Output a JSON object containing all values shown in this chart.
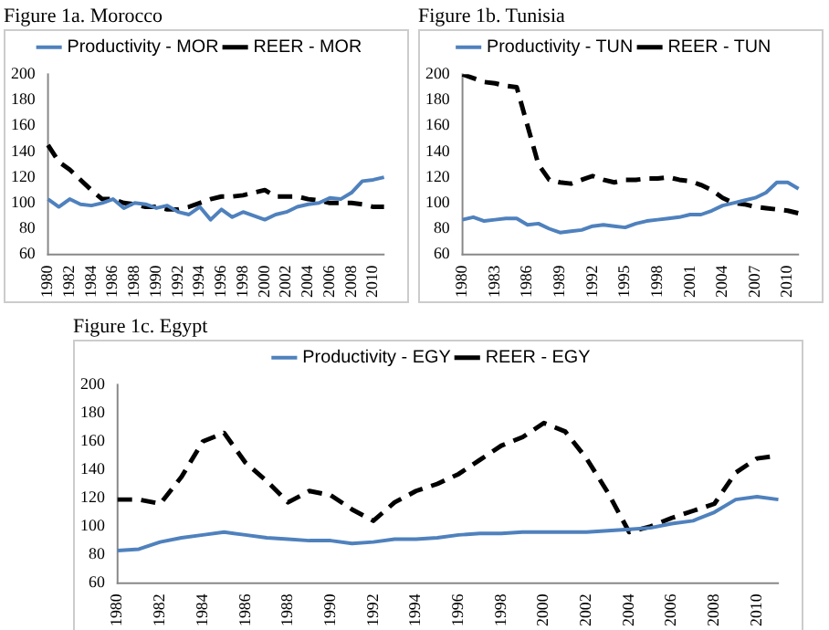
{
  "chart_data": [
    {
      "type": "line",
      "title": "Figure 1a. Morocco",
      "categories": [
        "1980",
        null,
        "1982",
        null,
        "1984",
        null,
        "1986",
        null,
        "1988",
        null,
        "1990",
        null,
        "1992",
        null,
        "1994",
        null,
        "1996",
        null,
        "1998",
        null,
        "2000",
        null,
        "2002",
        null,
        "2004",
        null,
        "2006",
        null,
        "2008",
        null,
        "2010",
        null
      ],
      "ylim": [
        60,
        200
      ],
      "yticks": [
        60,
        80,
        100,
        120,
        140,
        160,
        180,
        200
      ],
      "grid": false,
      "legend": "top",
      "marker": "none",
      "series": [
        {
          "name": "Productivity - MOR",
          "color": "#4f81bd",
          "line_style": "solid",
          "values": [
            103,
            97,
            103,
            99,
            98,
            100,
            103,
            96,
            100,
            99,
            96,
            98,
            93,
            91,
            97,
            87,
            95,
            89,
            93,
            90,
            87,
            91,
            93,
            97,
            99,
            100,
            104,
            103,
            108,
            117,
            118,
            120
          ]
        },
        {
          "name": "REER - MOR",
          "color": "#000000",
          "line_style": "dashed",
          "values": [
            145,
            132,
            126,
            118,
            110,
            103,
            103,
            100,
            99,
            97,
            97,
            95,
            95,
            97,
            100,
            103,
            105,
            105,
            106,
            108,
            110,
            105,
            105,
            105,
            103,
            102,
            100,
            100,
            100,
            99,
            97,
            97
          ]
        }
      ]
    },
    {
      "type": "line",
      "title": "Figure 1b. Tunisia",
      "categories": [
        "1980",
        null,
        null,
        "1983",
        null,
        null,
        "1986",
        null,
        null,
        "1989",
        null,
        null,
        "1992",
        null,
        null,
        "1995",
        null,
        null,
        "1998",
        null,
        null,
        "2001",
        null,
        null,
        "2004",
        null,
        null,
        "2007",
        null,
        null,
        "2010",
        null
      ],
      "ylim": [
        60,
        200
      ],
      "yticks": [
        60,
        80,
        100,
        120,
        140,
        160,
        180,
        200
      ],
      "grid": false,
      "legend": "top",
      "marker": "none",
      "series": [
        {
          "name": "Productivity - TUN",
          "color": "#4f81bd",
          "line_style": "solid",
          "values": [
            87,
            89,
            86,
            87,
            88,
            88,
            83,
            84,
            80,
            77,
            78,
            79,
            82,
            83,
            82,
            81,
            84,
            86,
            87,
            88,
            89,
            91,
            91,
            94,
            98,
            100,
            102,
            104,
            108,
            116,
            116,
            111
          ]
        },
        {
          "name": "REER - TUN",
          "color": "#000000",
          "line_style": "dashed",
          "values": [
            200,
            197,
            194,
            193,
            191,
            190,
            160,
            130,
            118,
            116,
            115,
            118,
            121,
            118,
            116,
            118,
            118,
            119,
            119,
            120,
            118,
            117,
            114,
            110,
            104,
            100,
            99,
            97,
            96,
            95,
            94,
            92
          ]
        }
      ]
    },
    {
      "type": "line",
      "title": "Figure 1c. Egypt",
      "categories": [
        "1980",
        null,
        "1982",
        null,
        "1984",
        null,
        "1986",
        null,
        "1988",
        null,
        "1990",
        null,
        "1992",
        null,
        "1994",
        null,
        "1996",
        null,
        "1998",
        null,
        "2000",
        null,
        "2002",
        null,
        "2004",
        null,
        "2006",
        null,
        "2008",
        null,
        "2010",
        null
      ],
      "ylim": [
        60,
        200
      ],
      "yticks": [
        60,
        80,
        100,
        120,
        140,
        160,
        180,
        200
      ],
      "grid": false,
      "legend": "top",
      "marker": "none",
      "series": [
        {
          "name": "Productivity - EGY",
          "color": "#4f81bd",
          "line_style": "solid",
          "values": [
            83,
            84,
            89,
            92,
            94,
            96,
            94,
            92,
            91,
            90,
            90,
            88,
            89,
            91,
            91,
            92,
            94,
            95,
            95,
            96,
            96,
            96,
            96,
            97,
            98,
            99,
            102,
            104,
            110,
            119,
            121,
            119
          ]
        },
        {
          "name": "REER - EGY",
          "color": "#000000",
          "line_style": "dashed",
          "values": [
            119,
            119,
            116,
            135,
            160,
            166,
            145,
            132,
            117,
            125,
            122,
            112,
            104,
            117,
            125,
            130,
            137,
            147,
            157,
            163,
            173,
            167,
            148,
            124,
            96,
            100,
            106,
            111,
            116,
            138,
            148,
            150
          ]
        }
      ]
    }
  ]
}
